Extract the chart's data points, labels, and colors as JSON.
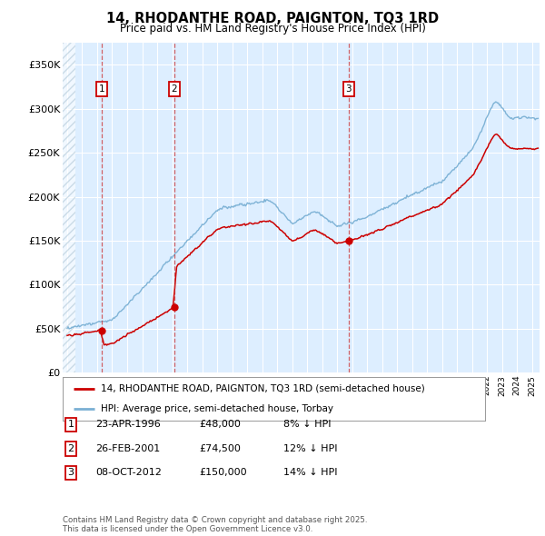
{
  "title": "14, RHODANTHE ROAD, PAIGNTON, TQ3 1RD",
  "subtitle": "Price paid vs. HM Land Registry's House Price Index (HPI)",
  "ylim": [
    0,
    375000
  ],
  "yticks": [
    0,
    50000,
    100000,
    150000,
    200000,
    250000,
    300000,
    350000
  ],
  "ytick_labels": [
    "£0",
    "£50K",
    "£100K",
    "£150K",
    "£200K",
    "£250K",
    "£300K",
    "£350K"
  ],
  "xlim_start": 1993.7,
  "xlim_end": 2025.5,
  "bg_color": "#ffffff",
  "plot_bg": "#ddeeff",
  "hatch_region_end": 1994.55,
  "sales": [
    {
      "year": 1996.31,
      "price": 48000,
      "label": "1"
    },
    {
      "year": 2001.15,
      "price": 74500,
      "label": "2"
    },
    {
      "year": 2012.77,
      "price": 150000,
      "label": "3"
    }
  ],
  "red_line_color": "#cc0000",
  "blue_line_color": "#7ab0d4",
  "legend_label_red": "14, RHODANTHE ROAD, PAIGNTON, TQ3 1RD (semi-detached house)",
  "legend_label_blue": "HPI: Average price, semi-detached house, Torbay",
  "footer": "Contains HM Land Registry data © Crown copyright and database right 2025.\nThis data is licensed under the Open Government Licence v3.0.",
  "table_rows": [
    {
      "num": "1",
      "date": "23-APR-1996",
      "price": "£48,000",
      "pct": "8% ↓ HPI"
    },
    {
      "num": "2",
      "date": "26-FEB-2001",
      "price": "£74,500",
      "pct": "12% ↓ HPI"
    },
    {
      "num": "3",
      "date": "08-OCT-2012",
      "price": "£150,000",
      "pct": "14% ↓ HPI"
    }
  ]
}
